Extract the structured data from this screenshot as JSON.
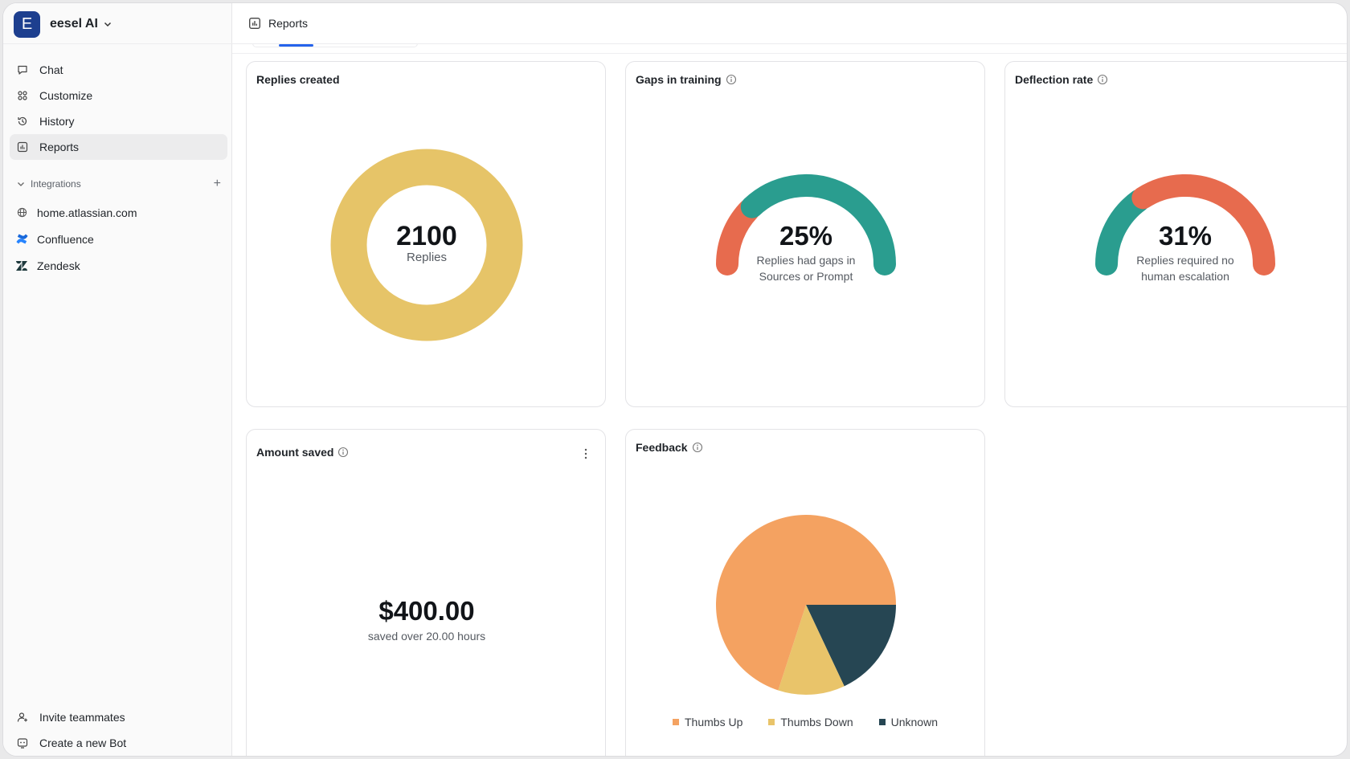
{
  "workspace": {
    "initial": "E",
    "name": "eesel AI"
  },
  "sidebar": {
    "nav": [
      {
        "label": "Chat",
        "icon": "chat-bubble-icon"
      },
      {
        "label": "Customize",
        "icon": "customize-grid-icon"
      },
      {
        "label": "History",
        "icon": "history-icon"
      },
      {
        "label": "Reports",
        "icon": "reports-icon",
        "active": true
      }
    ],
    "integrations_label": "Integrations",
    "integrations": [
      {
        "label": "home.atlassian.com",
        "icon": "globe-icon"
      },
      {
        "label": "Confluence",
        "icon": "confluence-icon"
      },
      {
        "label": "Zendesk",
        "icon": "zendesk-icon"
      }
    ],
    "bottom": [
      {
        "label": "Invite teammates",
        "icon": "invite-user-icon"
      },
      {
        "label": "Create a new Bot",
        "icon": "bot-icon"
      }
    ]
  },
  "topbar": {
    "title": "Reports"
  },
  "cards": {
    "replies": {
      "title": "Replies created",
      "value": "2100",
      "unit": "Replies",
      "color": "#e6c468"
    },
    "gaps": {
      "title": "Gaps in training",
      "value": "25%",
      "percent": 25,
      "caption_1": "Replies had gaps in",
      "caption_2": "Sources or Prompt",
      "fill_color": "#e76b4e",
      "rest_color": "#2a9d8f"
    },
    "deflection": {
      "title": "Deflection rate",
      "value": "31%",
      "percent": 31,
      "caption_1": "Replies required no",
      "caption_2": "human escalation",
      "fill_color": "#2a9d8f",
      "rest_color": "#e76b4e"
    },
    "amount": {
      "title": "Amount saved",
      "value": "$400.00",
      "caption": "saved over 20.00 hours"
    },
    "feedback": {
      "title": "Feedback"
    }
  },
  "chart_data": {
    "type": "pie",
    "categories": [
      "Thumbs Up",
      "Thumbs Down",
      "Unknown"
    ],
    "values": [
      70,
      12,
      18
    ],
    "colors": [
      "#f4a261",
      "#e9c46a",
      "#264653"
    ]
  }
}
